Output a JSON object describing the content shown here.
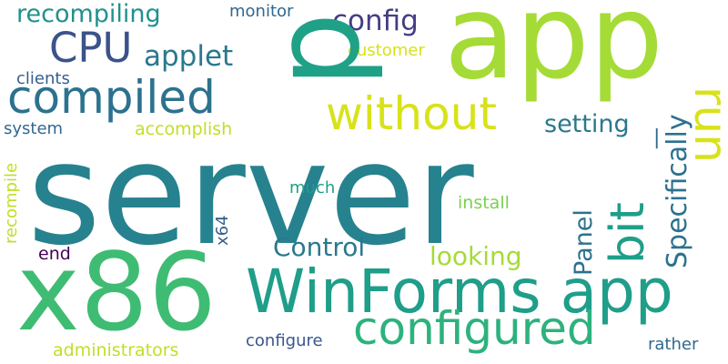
{
  "word_cloud": {
    "words": [
      {
        "key": "server",
        "text": "server",
        "color": "#26828e"
      },
      {
        "key": "x86",
        "text": "x86",
        "color": "#3fbc73"
      },
      {
        "key": "app",
        "text": "app",
        "color": "#a5db36"
      },
      {
        "key": "p",
        "text": "p",
        "color": "#1fa187"
      },
      {
        "key": "winforms_app",
        "text": "WinForms app",
        "color": "#1f9e89"
      },
      {
        "key": "compiled",
        "text": "compiled",
        "color": "#2c728e"
      },
      {
        "key": "configured",
        "text": "configured",
        "color": "#2db27d"
      },
      {
        "key": "without",
        "text": "without",
        "color": "#d8e219"
      },
      {
        "key": "cpu",
        "text": "CPU",
        "color": "#3b528b"
      },
      {
        "key": "recompiling",
        "text": "recompiling",
        "color": "#21918c"
      },
      {
        "key": "applet",
        "text": "applet",
        "color": "#2a788e"
      },
      {
        "key": "config",
        "text": "config",
        "color": "#433e85"
      },
      {
        "key": "run",
        "text": "run",
        "color": "#d8e219"
      },
      {
        "key": "bit",
        "text": "bit",
        "color": "#1f9e89"
      },
      {
        "key": "specifically",
        "text": "Specifically",
        "color": "#2c728e"
      },
      {
        "key": "setting",
        "text": "setting",
        "color": "#2a788e"
      },
      {
        "key": "control",
        "text": "Control",
        "color": "#2a788e"
      },
      {
        "key": "looking",
        "text": "looking",
        "color": "#a5db36"
      },
      {
        "key": "panel",
        "text": "Panel",
        "color": "#2c728e"
      },
      {
        "key": "monitor",
        "text": "monitor",
        "color": "#31688e"
      },
      {
        "key": "customer",
        "text": "customer",
        "color": "#d8e219"
      },
      {
        "key": "clients",
        "text": "clients",
        "color": "#355f8d"
      },
      {
        "key": "system",
        "text": "system",
        "color": "#31688e"
      },
      {
        "key": "accomplish",
        "text": "accomplish",
        "color": "#c0df25"
      },
      {
        "key": "much",
        "text": "much",
        "color": "#1f9e89"
      },
      {
        "key": "install",
        "text": "install",
        "color": "#7ad151"
      },
      {
        "key": "x64",
        "text": "x64",
        "color": "#355f8d"
      },
      {
        "key": "recompile",
        "text": "recompile",
        "color": "#c0df25"
      },
      {
        "key": "end",
        "text": "end",
        "color": "#440154"
      },
      {
        "key": "administrators",
        "text": "administrators",
        "color": "#c0df25"
      },
      {
        "key": "configure",
        "text": "configure",
        "color": "#39568c"
      },
      {
        "key": "rather",
        "text": "rather",
        "color": "#31688e"
      },
      {
        "key": "bar",
        "text": "|",
        "color": "#31688e"
      }
    ]
  }
}
